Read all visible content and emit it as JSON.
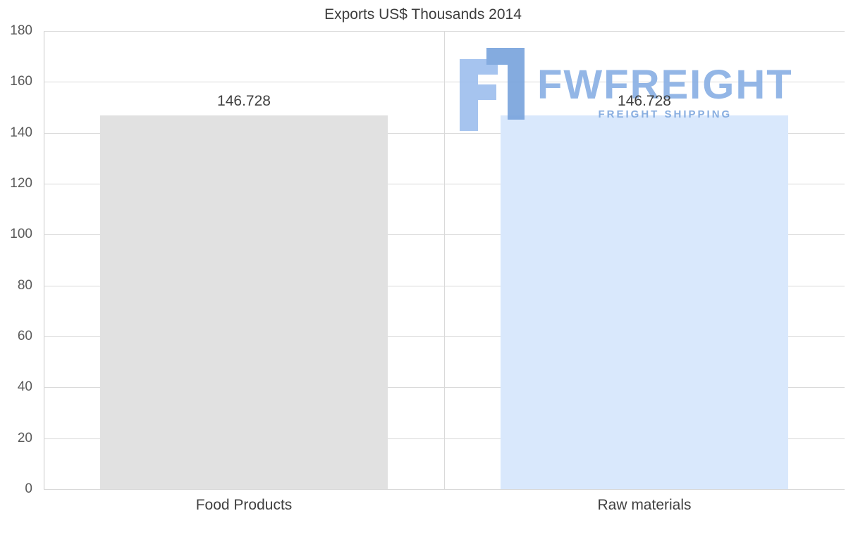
{
  "chart_data": {
    "type": "bar",
    "title": "Exports US$ Thousands 2014",
    "categories": [
      "Food Products",
      "Raw materials"
    ],
    "values": [
      146.728,
      146.728
    ],
    "value_labels": [
      "146.728",
      "146.728"
    ],
    "xlabel": "",
    "ylabel": "",
    "ylim": [
      0,
      180
    ],
    "yticks": [
      0,
      20,
      40,
      60,
      80,
      100,
      120,
      140,
      160,
      180
    ],
    "bar_colors": [
      "#e1e1e1",
      "#d9e8fc"
    ],
    "grid": true,
    "legend": "none"
  },
  "watermark": {
    "brand": "FWFREIGHT",
    "tagline": "FREIGHT SHIPPING",
    "color": "#8ab0e4"
  }
}
